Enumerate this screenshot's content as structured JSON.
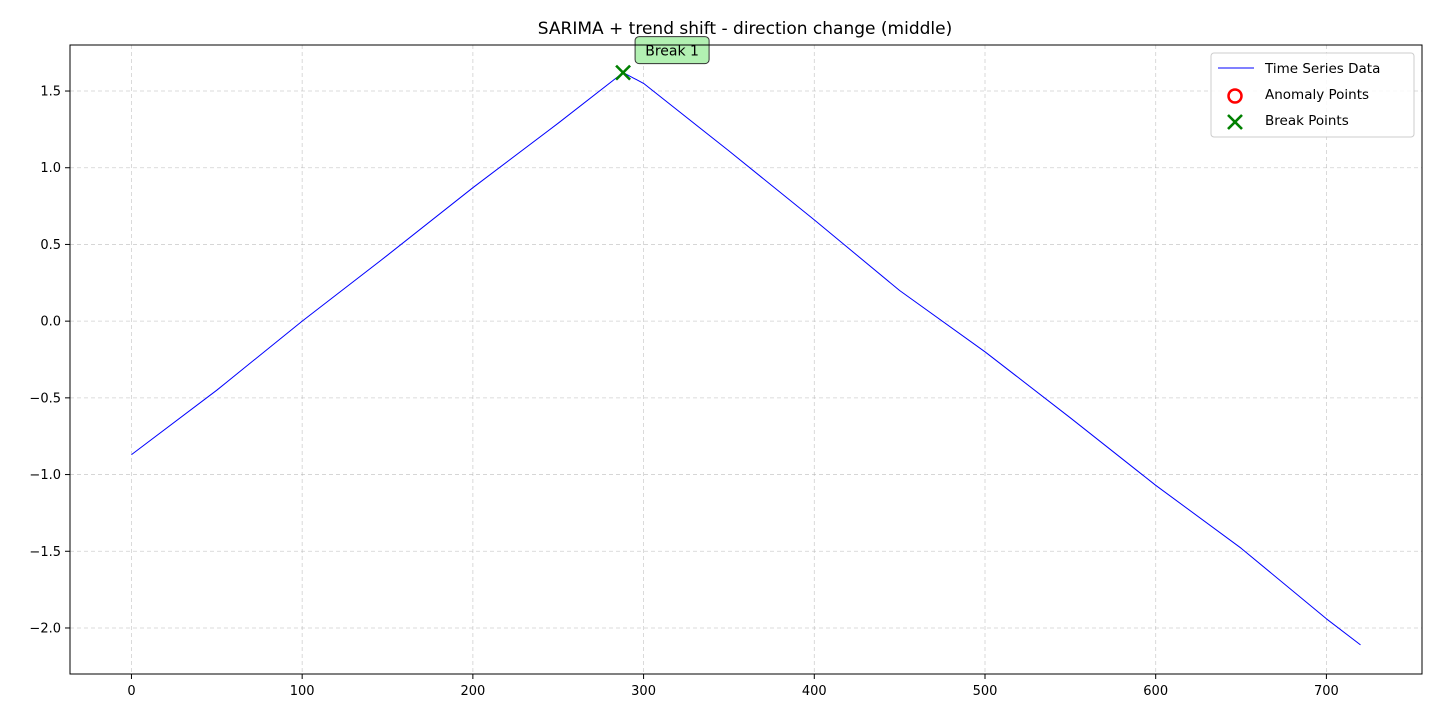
{
  "chart_data": {
    "type": "line",
    "title": "SARIMA + trend shift - direction change (middle)",
    "xlabel": "",
    "ylabel": "",
    "xlim": [
      -36,
      756
    ],
    "ylim": [
      -2.3,
      1.8
    ],
    "x_ticks": [
      0,
      100,
      200,
      300,
      400,
      500,
      600,
      700
    ],
    "x_tick_labels": [
      "0",
      "100",
      "200",
      "300",
      "400",
      "500",
      "600",
      "700"
    ],
    "y_ticks": [
      1.5,
      1.0,
      0.5,
      0.0,
      -0.5,
      -1.0,
      -1.5,
      -2.0
    ],
    "y_tick_labels": [
      "1.5",
      "1.0",
      "0.5",
      "0.0",
      "−0.5",
      "−1.0",
      "−1.5",
      "−2.0"
    ],
    "grid": true,
    "legend_position": "top-right",
    "series": [
      {
        "name": "Time Series Data",
        "color": "#0000ff",
        "x": [
          0,
          50,
          100,
          150,
          200,
          250,
          288,
          300,
          350,
          400,
          450,
          500,
          550,
          600,
          650,
          700,
          720
        ],
        "y": [
          -0.87,
          -0.45,
          0.0,
          0.43,
          0.87,
          1.29,
          1.62,
          1.55,
          1.11,
          0.66,
          0.2,
          -0.2,
          -0.63,
          -1.07,
          -1.48,
          -1.94,
          -2.11
        ]
      }
    ],
    "anomaly_points": {
      "name": "Anomaly Points",
      "color": "#ff0000",
      "points": []
    },
    "break_points": {
      "name": "Break Points",
      "color": "#008000",
      "points": [
        {
          "x": 288,
          "y": 1.62,
          "label": "Break 1"
        }
      ]
    },
    "annotation_box_color": "#b2f0b2"
  }
}
